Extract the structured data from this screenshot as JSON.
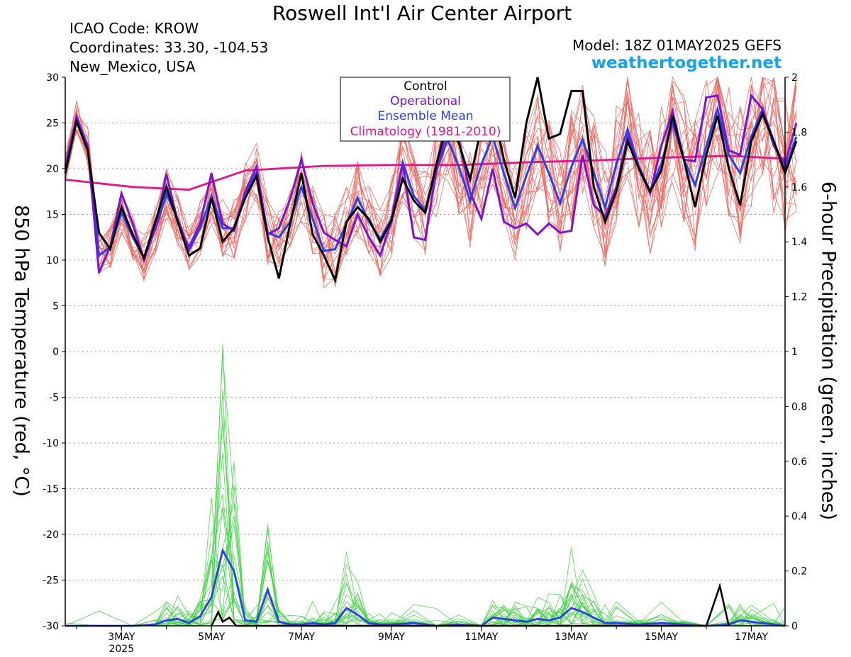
{
  "header": {
    "title": "Roswell Int'l Air Center Airport",
    "icao": "ICAO Code: KROW",
    "coords": "Coordinates: 33.30, -104.53",
    "region": "New_Mexico, USA",
    "model": "Model: 18Z 01MAY2025 GEFS",
    "site": "weathertogether.net"
  },
  "colors": {
    "ensemble_temp": "#f0645a",
    "control": "#000000",
    "operational": "#7a13d6",
    "mean": "#2a3ff0",
    "climatology": "#e8138a",
    "precip_members": "#3fd43f",
    "site": "#14a3ee"
  },
  "chart_data": {
    "type": "line",
    "title": "Roswell Int'l Air Center Airport",
    "ylabel": "850 hPa Temperature (red, °C)",
    "y2label": "6-hour Precipitation (green, inches)",
    "ylim": [
      -30,
      30
    ],
    "y2lim": [
      0,
      2
    ],
    "yticks": [
      30,
      25,
      20,
      15,
      10,
      5,
      0,
      -5,
      -10,
      -15,
      -20,
      -25,
      -30
    ],
    "y2ticks": [
      2,
      1.8,
      1.6,
      1.4,
      1.2,
      1,
      0.8,
      0.6,
      0.4,
      0.2,
      0
    ],
    "x_tick_labels": [
      "3MAY",
      "5MAY",
      "7MAY",
      "9MAY",
      "11MAY",
      "13MAY",
      "15MAY",
      "17MAY"
    ],
    "x_tick_days": [
      3,
      5,
      7,
      9,
      11,
      13,
      15,
      17
    ],
    "year_label": "2025",
    "x_start": 1.75,
    "x_end": 17.75,
    "x_step": 0.25,
    "legend": [
      "Control",
      "Operational",
      "Ensemble Mean",
      "Climatology (1981-2010)"
    ],
    "temperature": {
      "control": [
        19.5,
        25.2,
        22.0,
        13.0,
        11.2,
        15.8,
        12.8,
        10.2,
        14.2,
        18.0,
        14.2,
        10.5,
        11.3,
        16.8,
        12.0,
        13.5,
        16.8,
        19.2,
        12.5,
        8.0,
        14.0,
        19.5,
        12.8,
        10.5,
        7.8,
        14.2,
        15.8,
        14.5,
        12.0,
        14.3,
        18.9,
        16.5,
        15.2,
        20.5,
        25.2,
        22.8,
        18.8,
        24.6,
        26.8,
        21.0,
        16.8,
        25.0,
        30.0,
        23.3,
        23.8,
        28.5,
        28.5,
        18.0,
        14.2,
        17.5,
        23.0,
        20.0,
        17.5,
        19.8,
        25.8,
        21.0,
        15.8,
        21.5,
        25.8,
        20.0,
        16.0,
        23.0,
        26.0,
        23.0,
        19.5,
        23.0
      ],
      "operational": [
        20.0,
        25.7,
        22.5,
        8.6,
        11.5,
        17.3,
        14.0,
        10.0,
        13.5,
        19.4,
        14.2,
        11.4,
        14.0,
        19.5,
        14.0,
        13.2,
        17.5,
        20.2,
        12.8,
        13.5,
        16.7,
        21.0,
        16.2,
        13.0,
        12.2,
        11.5,
        15.0,
        12.5,
        10.5,
        14.2,
        20.5,
        12.5,
        12.2,
        19.8,
        24.5,
        23.0,
        17.4,
        14.5,
        20.0,
        14.2,
        13.5,
        14.0,
        12.8,
        14.0,
        13.0,
        13.2,
        21.5,
        16.0,
        14.8,
        18.0,
        23.5,
        20.0,
        17.3,
        22.5,
        26.3,
        21.0,
        20.8,
        27.8,
        28.0,
        22.0,
        21.5,
        28.0,
        26.5,
        22.5,
        20.5,
        25.0
      ],
      "mean": [
        20.3,
        25.6,
        22.5,
        10.5,
        11.4,
        15.2,
        12.5,
        10.3,
        13.3,
        17.2,
        14.5,
        11.1,
        13.5,
        17.0,
        13.5,
        13.5,
        17.3,
        19.5,
        13.0,
        12.5,
        14.2,
        18.0,
        14.5,
        11.0,
        11.2,
        14.0,
        16.8,
        14.2,
        12.3,
        14.5,
        20.7,
        17.0,
        15.5,
        19.8,
        23.2,
        20.2,
        16.5,
        20.5,
        23.5,
        19.5,
        15.7,
        19.2,
        22.5,
        19.5,
        16.2,
        20.2,
        23.2,
        19.5,
        15.8,
        20.5,
        24.3,
        20.3,
        17.5,
        20.5,
        25.0,
        21.0,
        18.2,
        22.5,
        26.5,
        21.5,
        19.5,
        23.5,
        26.5,
        23.0,
        19.8,
        23.5
      ],
      "climatology_x": [
        1.75,
        3.25,
        4.5,
        5.75,
        7.5,
        9.0,
        10.5,
        12.0,
        13.5,
        15.0,
        16.5,
        17.75
      ],
      "climatology": [
        18.8,
        18.0,
        17.7,
        19.8,
        20.3,
        20.4,
        20.4,
        20.7,
        20.9,
        21.2,
        21.4,
        21.1
      ]
    },
    "precipitation": {
      "control_x": [
        5.0,
        5.15,
        5.25,
        5.4,
        5.55,
        16.0,
        16.3,
        16.5
      ],
      "control": [
        0.0,
        0.05,
        0.015,
        0.03,
        0.0,
        0.0,
        0.145,
        0.0
      ],
      "mean_x": [
        1.75,
        2.5,
        3.25,
        3.75,
        4.0,
        4.25,
        4.5,
        4.75,
        5.0,
        5.25,
        5.5,
        5.75,
        6.0,
        6.25,
        6.5,
        6.75,
        7.0,
        7.25,
        7.5,
        7.75,
        8.0,
        8.25,
        8.5,
        8.75,
        9.0,
        9.5,
        10.0,
        10.5,
        11.0,
        11.25,
        11.5,
        11.75,
        12.0,
        12.25,
        12.5,
        12.75,
        13.0,
        13.25,
        13.5,
        13.75,
        14.0,
        14.5,
        15.0,
        15.5,
        16.0,
        16.5,
        16.75,
        17.0,
        17.5,
        17.75
      ],
      "mean": [
        0.0,
        0.0,
        0.0,
        0.005,
        0.02,
        0.025,
        0.01,
        0.035,
        0.105,
        0.275,
        0.2,
        0.02,
        0.015,
        0.13,
        0.015,
        0.005,
        0.005,
        0.01,
        0.005,
        0.01,
        0.065,
        0.04,
        0.01,
        0.005,
        0.005,
        0.01,
        0.0,
        0.005,
        0.0,
        0.03,
        0.025,
        0.02,
        0.015,
        0.025,
        0.02,
        0.03,
        0.065,
        0.05,
        0.03,
        0.01,
        0.01,
        0.005,
        0.01,
        0.005,
        0.0,
        0.005,
        0.02,
        0.015,
        0.005,
        0.0
      ]
    }
  }
}
